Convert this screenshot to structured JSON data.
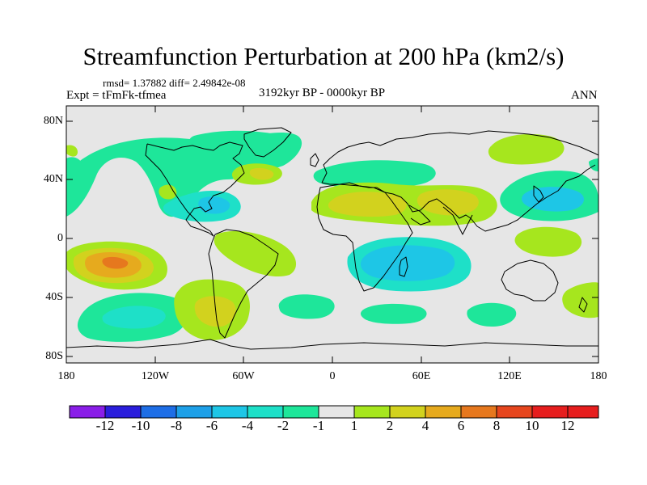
{
  "title": "Streamfunction Perturbation at 200 hPa (km2/s)",
  "stats": "rmsd= 1.37882 diff= 2.49842e-08",
  "experiment": "Expt = tFmFk-tfmea",
  "period": "3192kyr BP - 0000kyr BP",
  "season": "ANN",
  "colors": {
    "ocean_background": "#e6e6e6",
    "coastline": "#000000",
    "anomalies": {
      "-12": "#8a1ee8",
      "-10": "#2a1edc",
      "-8": "#1e6ee6",
      "-6": "#1ea0e8",
      "-4": "#1ec6e6",
      "-2": "#1ee0c8",
      "-1": "#1ee69a",
      "1": "#e6e6e6",
      "2": "#a6e61e",
      "4": "#d2d21e",
      "6": "#e6aa1e",
      "8": "#e6781e",
      "10": "#e6461e",
      "12": "#e61e1e"
    }
  },
  "axes": {
    "latitude_labels": [
      "80N",
      "40N",
      "0",
      "40S",
      "80S"
    ],
    "longitude_labels": [
      "180",
      "120W",
      "60W",
      "0",
      "60E",
      "120E",
      "180"
    ]
  },
  "colorbar": {
    "labels": [
      "-12",
      "-10",
      "-8",
      "-6",
      "-4",
      "-2",
      "-1",
      "1",
      "2",
      "4",
      "6",
      "8",
      "10",
      "12"
    ],
    "boxes": [
      {
        "color": "#8a1ee8"
      },
      {
        "color": "#2a1edc"
      },
      {
        "color": "#1e6ee6"
      },
      {
        "color": "#1ea0e8"
      },
      {
        "color": "#1ec6e6"
      },
      {
        "color": "#1ee0c8"
      },
      {
        "color": "#1ee69a"
      },
      {
        "color": "#e6e6e6"
      },
      {
        "color": "#a6e61e"
      },
      {
        "color": "#d2d21e"
      },
      {
        "color": "#e6aa1e"
      },
      {
        "color": "#e6781e"
      },
      {
        "color": "#e6461e"
      },
      {
        "color": "#e61e1e"
      },
      {
        "color": "#e61e1e"
      }
    ]
  }
}
